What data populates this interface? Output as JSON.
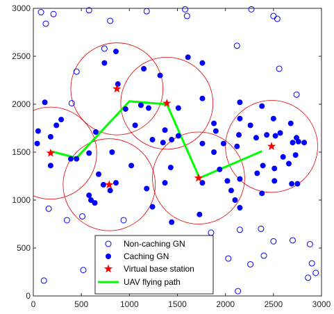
{
  "chart_data": {
    "type": "scatter",
    "title": "",
    "xlabel": "",
    "ylabel": "",
    "xlim": [
      0,
      3000
    ],
    "ylim": [
      0,
      3000
    ],
    "xticks": [
      "0",
      "500",
      "1000",
      "1500",
      "2000",
      "2500",
      "3000"
    ],
    "yticks": [
      "0",
      "500",
      "1000",
      "1500",
      "2000",
      "2500",
      "3000"
    ],
    "grid": false,
    "legend": {
      "placement": "bottom-center"
    },
    "colors": {
      "gn": "#0000ff",
      "vbs": "#ff0000",
      "circle": "#e00000",
      "path": "#00ff00"
    },
    "coverage_radius": 480,
    "series": [
      {
        "name": "Non-caching GN",
        "marker": "open-circle",
        "points": [
          [
            80,
            2960
          ],
          [
            130,
            2840
          ],
          [
            210,
            2940
          ],
          [
            580,
            2980
          ],
          [
            800,
            2870
          ],
          [
            1180,
            2970
          ],
          [
            1580,
            2990
          ],
          [
            1600,
            2920
          ],
          [
            2270,
            2990
          ],
          [
            2500,
            2920
          ],
          [
            2540,
            2890
          ],
          [
            740,
            2580
          ],
          [
            2120,
            2610
          ],
          [
            2560,
            2370
          ],
          [
            450,
            2340
          ],
          [
            400,
            2010
          ],
          [
            2740,
            2100
          ],
          [
            350,
            790
          ],
          [
            160,
            910
          ],
          [
            510,
            830
          ],
          [
            940,
            790
          ],
          [
            520,
            270
          ],
          [
            110,
            160
          ],
          [
            1850,
            660
          ],
          [
            2150,
            690
          ],
          [
            2370,
            700
          ],
          [
            2700,
            580
          ],
          [
            2880,
            540
          ],
          [
            2500,
            570
          ],
          [
            2030,
            390
          ],
          [
            2260,
            330
          ],
          [
            2400,
            420
          ],
          [
            2900,
            340
          ],
          [
            2940,
            240
          ],
          [
            2860,
            190
          ],
          [
            2130,
            50
          ]
        ]
      },
      {
        "name": "Caching GN",
        "marker": "filled-circle",
        "points": [
          [
            860,
            2550
          ],
          [
            740,
            2430
          ],
          [
            1150,
            2370
          ],
          [
            1320,
            2300
          ],
          [
            1610,
            2490
          ],
          [
            1760,
            2430
          ],
          [
            880,
            2210
          ],
          [
            1120,
            1990
          ],
          [
            960,
            1950
          ],
          [
            1200,
            1960
          ],
          [
            1510,
            1960
          ],
          [
            1760,
            2060
          ],
          [
            1060,
            1780
          ],
          [
            1370,
            1730
          ],
          [
            1510,
            1670
          ],
          [
            1240,
            1630
          ],
          [
            1350,
            1600
          ],
          [
            1880,
            1800
          ],
          [
            1900,
            1720
          ],
          [
            1760,
            1590
          ],
          [
            1980,
            1590
          ],
          [
            820,
            1500
          ],
          [
            650,
            1710
          ],
          [
            120,
            2020
          ],
          [
            50,
            1720
          ],
          [
            180,
            1660
          ],
          [
            290,
            1840
          ],
          [
            240,
            1780
          ],
          [
            40,
            1590
          ],
          [
            580,
            1490
          ],
          [
            680,
            1270
          ],
          [
            730,
            1160
          ],
          [
            860,
            1180
          ],
          [
            390,
            1430
          ],
          [
            450,
            1430
          ],
          [
            180,
            1360
          ],
          [
            1020,
            1360
          ],
          [
            1370,
            1180
          ],
          [
            1180,
            1120
          ],
          [
            1240,
            930
          ],
          [
            1760,
            1180
          ],
          [
            1940,
            1320
          ],
          [
            2020,
            1200
          ],
          [
            2060,
            1100
          ],
          [
            2150,
            1220
          ],
          [
            2100,
            1000
          ],
          [
            2150,
            920
          ],
          [
            2510,
            1330
          ],
          [
            2390,
            1360
          ],
          [
            2690,
            1170
          ],
          [
            2750,
            1170
          ],
          [
            2380,
            1070
          ],
          [
            2150,
            2020
          ],
          [
            2150,
            1850
          ],
          [
            2380,
            1980
          ],
          [
            2260,
            1780
          ],
          [
            2430,
            1680
          ],
          [
            2520,
            1670
          ],
          [
            2680,
            1800
          ],
          [
            2320,
            1650
          ],
          [
            2140,
            1680
          ],
          [
            2500,
            1850
          ],
          [
            2740,
            1650
          ],
          [
            2700,
            1600
          ],
          [
            2760,
            1610
          ],
          [
            2730,
            1470
          ],
          [
            2820,
            1600
          ],
          [
            2600,
            1450
          ],
          [
            2510,
            1200
          ],
          [
            2660,
            1380
          ],
          [
            2120,
            1560
          ],
          [
            1730,
            850
          ],
          [
            1440,
            770
          ],
          [
            1300,
            600
          ],
          [
            640,
            970
          ],
          [
            580,
            1050
          ],
          [
            600,
            1000
          ],
          [
            800,
            1100
          ],
          [
            1440,
            1630
          ],
          [
            1430,
            1340
          ],
          [
            1880,
            1500
          ],
          [
            2330,
            1280
          ],
          [
            2570,
            1700
          ]
        ]
      },
      {
        "name": "Virtual base station",
        "marker": "star",
        "points": [
          [
            870,
            2160
          ],
          [
            1390,
            2010
          ],
          [
            180,
            1490
          ],
          [
            790,
            1160
          ],
          [
            1720,
            1230
          ],
          [
            2480,
            1560
          ]
        ]
      },
      {
        "name": "UAV flying path",
        "marker": "line",
        "points": [
          [
            180,
            1510
          ],
          [
            450,
            1440
          ],
          [
            1000,
            2030
          ],
          [
            1390,
            2000
          ],
          [
            1730,
            1230
          ],
          [
            2380,
            1510
          ]
        ]
      }
    ]
  }
}
